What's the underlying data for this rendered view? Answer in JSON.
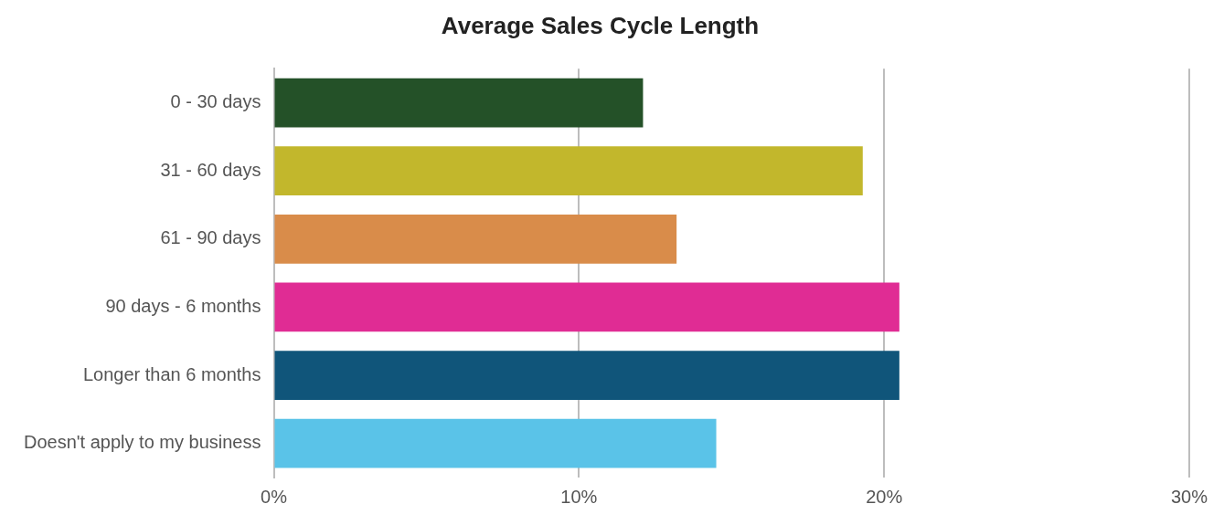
{
  "chart_data": {
    "type": "bar",
    "orientation": "horizontal",
    "title": "Average Sales Cycle Length",
    "categories": [
      "0 - 30 days",
      "31 - 60 days",
      "61 - 90 days",
      "90 days - 6 months",
      "Longer than 6 months",
      "Doesn't apply to my business"
    ],
    "values": [
      12.1,
      19.3,
      13.2,
      20.5,
      20.5,
      14.5
    ],
    "colors": [
      "#245128",
      "#c2b72c",
      "#d98c4a",
      "#e02c94",
      "#10557a",
      "#5ac3e8"
    ],
    "xlim": [
      0,
      30
    ],
    "xticks": [
      {
        "value": 0,
        "label": "0%"
      },
      {
        "value": 10,
        "label": "10%"
      },
      {
        "value": 20,
        "label": "20%"
      },
      {
        "value": 30,
        "label": "30%"
      }
    ],
    "grid": "x",
    "legend": false
  }
}
